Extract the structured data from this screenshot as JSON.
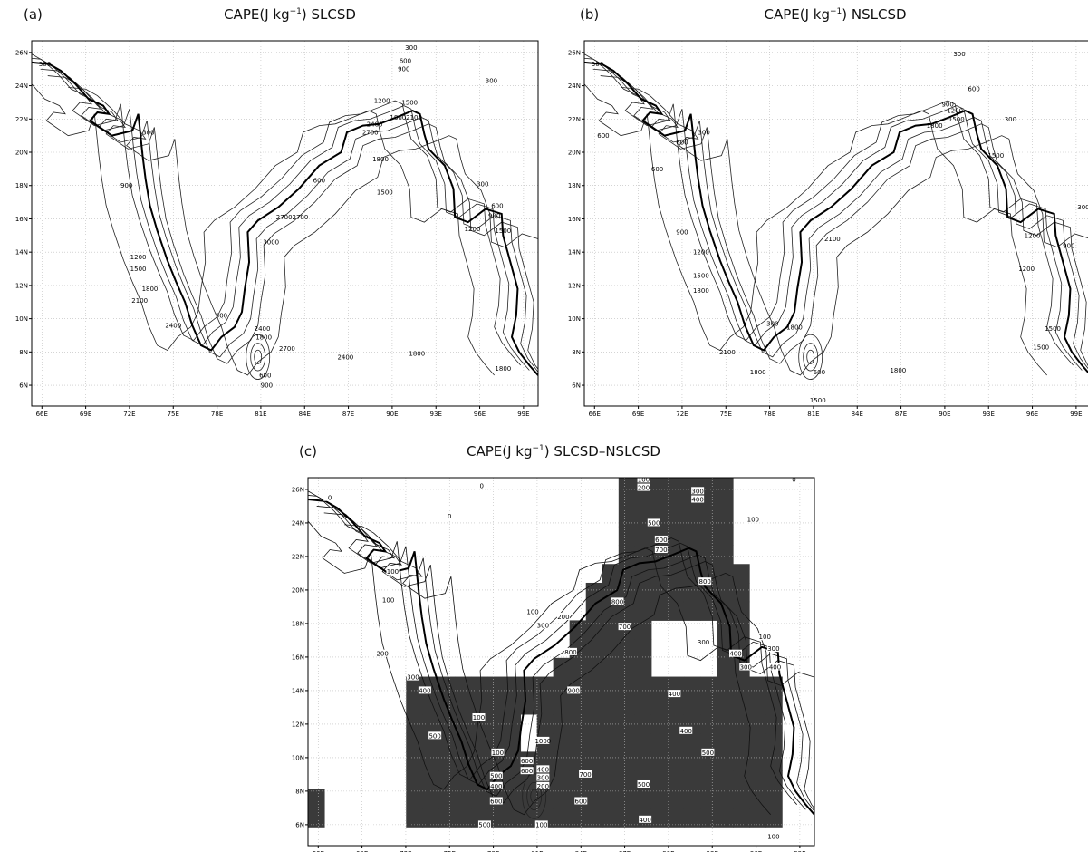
{
  "lon_range": [
    65.3,
    100
  ],
  "lat_range": [
    4.75,
    26.7
  ],
  "lon_ticks": [
    {
      "value": 66,
      "label": "66E"
    },
    {
      "value": 69,
      "label": "69E"
    },
    {
      "value": 72,
      "label": "72E"
    },
    {
      "value": 75,
      "label": "75E"
    },
    {
      "value": 78,
      "label": "78E"
    },
    {
      "value": 81,
      "label": "81E"
    },
    {
      "value": 84,
      "label": "84E"
    },
    {
      "value": 87,
      "label": "87E"
    },
    {
      "value": 90,
      "label": "90E"
    },
    {
      "value": 93,
      "label": "93E"
    },
    {
      "value": 96,
      "label": "96E"
    },
    {
      "value": 99,
      "label": "99E"
    }
  ],
  "lat_ticks": [
    {
      "value": 6,
      "label": "6N"
    },
    {
      "value": 8,
      "label": "8N"
    },
    {
      "value": 10,
      "label": "10N"
    },
    {
      "value": 12,
      "label": "12N"
    },
    {
      "value": 14,
      "label": "14N"
    },
    {
      "value": 16,
      "label": "16N"
    },
    {
      "value": 18,
      "label": "18N"
    },
    {
      "value": 20,
      "label": "20N"
    },
    {
      "value": 22,
      "label": "22N"
    },
    {
      "value": 24,
      "label": "24N"
    },
    {
      "value": 26,
      "label": "26N"
    }
  ],
  "panels": [
    {
      "label": "(a)",
      "title": [
        "CAPE(J kg",
        "−1",
        ") SLCSD"
      ],
      "contour_labels": [
        {
          "value": 300,
          "lon": 66.2,
          "lat": 25.3
        },
        {
          "value": 300,
          "lon": 91.3,
          "lat": 26.3
        },
        {
          "value": 600,
          "lon": 90.9,
          "lat": 25.5
        },
        {
          "value": 900,
          "lon": 90.8,
          "lat": 25.0
        },
        {
          "value": 300,
          "lon": 96.8,
          "lat": 24.3
        },
        {
          "value": 1200,
          "lon": 89.3,
          "lat": 23.1
        },
        {
          "value": 1500,
          "lon": 91.2,
          "lat": 23.0
        },
        {
          "value": 1800,
          "lon": 90.4,
          "lat": 22.1
        },
        {
          "value": 2100,
          "lon": 91.5,
          "lat": 22.1
        },
        {
          "value": 2400,
          "lon": 88.8,
          "lat": 21.7
        },
        {
          "value": 2700,
          "lon": 88.5,
          "lat": 21.2
        },
        {
          "value": 300,
          "lon": 73.3,
          "lat": 21.2
        },
        {
          "value": 1800,
          "lon": 89.2,
          "lat": 19.6
        },
        {
          "value": 900,
          "lon": 71.8,
          "lat": 18.0
        },
        {
          "value": 600,
          "lon": 85.0,
          "lat": 18.3
        },
        {
          "value": 1500,
          "lon": 89.5,
          "lat": 17.6
        },
        {
          "value": 300,
          "lon": 96.2,
          "lat": 18.1
        },
        {
          "value": 600,
          "lon": 97.2,
          "lat": 16.8
        },
        {
          "value": 900,
          "lon": 97.0,
          "lat": 16.2
        },
        {
          "value": 1200,
          "lon": 95.5,
          "lat": 15.4
        },
        {
          "value": 1500,
          "lon": 97.6,
          "lat": 15.3
        },
        {
          "value": 2700,
          "lon": 82.6,
          "lat": 16.1
        },
        {
          "value": 2700,
          "lon": 83.7,
          "lat": 16.1
        },
        {
          "value": 3000,
          "lon": 81.7,
          "lat": 14.6
        },
        {
          "value": 1200,
          "lon": 72.6,
          "lat": 13.7
        },
        {
          "value": 1500,
          "lon": 72.6,
          "lat": 13.0
        },
        {
          "value": 1800,
          "lon": 73.4,
          "lat": 11.8
        },
        {
          "value": 2100,
          "lon": 72.7,
          "lat": 11.1
        },
        {
          "value": 2400,
          "lon": 75.0,
          "lat": 9.6
        },
        {
          "value": 300,
          "lon": 78.3,
          "lat": 10.2
        },
        {
          "value": 2400,
          "lon": 81.1,
          "lat": 9.4
        },
        {
          "value": 1800,
          "lon": 81.2,
          "lat": 8.9
        },
        {
          "value": 2700,
          "lon": 82.8,
          "lat": 8.2
        },
        {
          "value": 2400,
          "lon": 86.8,
          "lat": 7.7
        },
        {
          "value": 1800,
          "lon": 91.7,
          "lat": 7.9
        },
        {
          "value": 1800,
          "lon": 97.6,
          "lat": 7.0
        },
        {
          "value": 600,
          "lon": 81.3,
          "lat": 6.6
        },
        {
          "value": 900,
          "lon": 81.4,
          "lat": 6.0
        }
      ]
    },
    {
      "label": "(b)",
      "title": [
        "CAPE(J kg",
        "−1",
        ") NSLCSD"
      ],
      "contour_labels": [
        {
          "value": 300,
          "lon": 66.2,
          "lat": 25.3
        },
        {
          "value": 300,
          "lon": 91.0,
          "lat": 25.9
        },
        {
          "value": 600,
          "lon": 92.0,
          "lat": 23.8
        },
        {
          "value": 900,
          "lon": 90.2,
          "lat": 22.9
        },
        {
          "value": 1200,
          "lon": 90.7,
          "lat": 22.5
        },
        {
          "value": 1500,
          "lon": 90.8,
          "lat": 22.0
        },
        {
          "value": 1800,
          "lon": 89.3,
          "lat": 21.6
        },
        {
          "value": 300,
          "lon": 94.5,
          "lat": 22.0
        },
        {
          "value": 300,
          "lon": 73.5,
          "lat": 21.2
        },
        {
          "value": 600,
          "lon": 66.6,
          "lat": 21.0
        },
        {
          "value": 600,
          "lon": 72.0,
          "lat": 20.6
        },
        {
          "value": 600,
          "lon": 70.3,
          "lat": 19.0
        },
        {
          "value": 1500,
          "lon": 93.5,
          "lat": 19.8
        },
        {
          "value": 300,
          "lon": 99.5,
          "lat": 16.7
        },
        {
          "value": 900,
          "lon": 72.0,
          "lat": 15.2
        },
        {
          "value": 1200,
          "lon": 96.0,
          "lat": 15.0
        },
        {
          "value": 900,
          "lon": 98.5,
          "lat": 14.4
        },
        {
          "value": 2100,
          "lon": 82.3,
          "lat": 14.8
        },
        {
          "value": 1200,
          "lon": 73.3,
          "lat": 14.0
        },
        {
          "value": 1200,
          "lon": 95.6,
          "lat": 13.0
        },
        {
          "value": 1500,
          "lon": 73.3,
          "lat": 12.6
        },
        {
          "value": 1800,
          "lon": 73.3,
          "lat": 11.7
        },
        {
          "value": 300,
          "lon": 78.2,
          "lat": 9.7
        },
        {
          "value": 1800,
          "lon": 79.7,
          "lat": 9.5
        },
        {
          "value": 1500,
          "lon": 97.4,
          "lat": 9.4
        },
        {
          "value": 1500,
          "lon": 96.6,
          "lat": 8.3
        },
        {
          "value": 2100,
          "lon": 75.1,
          "lat": 8.0
        },
        {
          "value": 1800,
          "lon": 77.2,
          "lat": 6.8
        },
        {
          "value": 1800,
          "lon": 86.8,
          "lat": 6.9
        },
        {
          "value": 600,
          "lon": 81.4,
          "lat": 6.8
        },
        {
          "value": 1500,
          "lon": 81.3,
          "lat": 5.1
        }
      ]
    },
    {
      "label": "(c)",
      "title": [
        "CAPE(J kg",
        "−1",
        ") SLCSD–NSLCSD"
      ],
      "contour_labels": [
        {
          "value": 0,
          "lon": 66.8,
          "lat": 25.5
        },
        {
          "value": 0,
          "lon": 77.2,
          "lat": 26.2
        },
        {
          "value": 100,
          "lon": 88.3,
          "lat": 26.6
        },
        {
          "value": 200,
          "lon": 88.3,
          "lat": 26.1
        },
        {
          "value": 0,
          "lon": 98.6,
          "lat": 26.6
        },
        {
          "value": 300,
          "lon": 92.0,
          "lat": 25.9
        },
        {
          "value": 400,
          "lon": 92.0,
          "lat": 25.4
        },
        {
          "value": 0,
          "lon": 75.0,
          "lat": 24.4
        },
        {
          "value": 100,
          "lon": 95.8,
          "lat": 24.2
        },
        {
          "value": 500,
          "lon": 89.0,
          "lat": 24.0
        },
        {
          "value": 600,
          "lon": 89.5,
          "lat": 23.0
        },
        {
          "value": 700,
          "lon": 89.5,
          "lat": 22.4
        },
        {
          "value": 100,
          "lon": 71.1,
          "lat": 21.1
        },
        {
          "value": 800,
          "lon": 92.5,
          "lat": 20.5
        },
        {
          "value": 100,
          "lon": 70.8,
          "lat": 19.4
        },
        {
          "value": 800,
          "lon": 86.5,
          "lat": 19.3
        },
        {
          "value": 100,
          "lon": 80.7,
          "lat": 18.7
        },
        {
          "value": 200,
          "lon": 82.8,
          "lat": 18.4
        },
        {
          "value": 300,
          "lon": 81.4,
          "lat": 17.9
        },
        {
          "value": 700,
          "lon": 87.0,
          "lat": 17.8
        },
        {
          "value": 300,
          "lon": 92.4,
          "lat": 16.9
        },
        {
          "value": 400,
          "lon": 94.6,
          "lat": 16.2
        },
        {
          "value": 100,
          "lon": 96.6,
          "lat": 17.2
        },
        {
          "value": 300,
          "lon": 97.2,
          "lat": 16.5
        },
        {
          "value": 300,
          "lon": 95.3,
          "lat": 15.4
        },
        {
          "value": 400,
          "lon": 97.3,
          "lat": 15.4
        },
        {
          "value": 200,
          "lon": 70.4,
          "lat": 16.2
        },
        {
          "value": 800,
          "lon": 83.3,
          "lat": 16.3
        },
        {
          "value": 300,
          "lon": 72.5,
          "lat": 14.8
        },
        {
          "value": 400,
          "lon": 73.3,
          "lat": 14.0
        },
        {
          "value": 900,
          "lon": 83.5,
          "lat": 14.0
        },
        {
          "value": 400,
          "lon": 90.4,
          "lat": 13.8
        },
        {
          "value": 100,
          "lon": 77.0,
          "lat": 12.4
        },
        {
          "value": 500,
          "lon": 74.0,
          "lat": 11.3
        },
        {
          "value": 1000,
          "lon": 81.4,
          "lat": 11.0
        },
        {
          "value": 400,
          "lon": 91.2,
          "lat": 11.6
        },
        {
          "value": 100,
          "lon": 78.3,
          "lat": 10.3
        },
        {
          "value": 500,
          "lon": 92.7,
          "lat": 10.3
        },
        {
          "value": 600,
          "lon": 80.3,
          "lat": 9.8
        },
        {
          "value": 600,
          "lon": 80.3,
          "lat": 9.2
        },
        {
          "value": 400,
          "lon": 81.4,
          "lat": 9.3
        },
        {
          "value": 300,
          "lon": 81.4,
          "lat": 8.8
        },
        {
          "value": 200,
          "lon": 81.4,
          "lat": 8.3
        },
        {
          "value": 700,
          "lon": 84.3,
          "lat": 9.0
        },
        {
          "value": 500,
          "lon": 78.2,
          "lat": 8.9
        },
        {
          "value": 400,
          "lon": 78.2,
          "lat": 8.3
        },
        {
          "value": 500,
          "lon": 88.3,
          "lat": 8.4
        },
        {
          "value": 600,
          "lon": 78.2,
          "lat": 7.4
        },
        {
          "value": 600,
          "lon": 84.0,
          "lat": 7.4
        },
        {
          "value": 500,
          "lon": 77.4,
          "lat": 6.0
        },
        {
          "value": 100,
          "lon": 81.3,
          "lat": 6.0
        },
        {
          "value": 400,
          "lon": 88.4,
          "lat": 6.3
        },
        {
          "value": 100,
          "lon": 97.2,
          "lat": 5.3
        }
      ]
    }
  ]
}
